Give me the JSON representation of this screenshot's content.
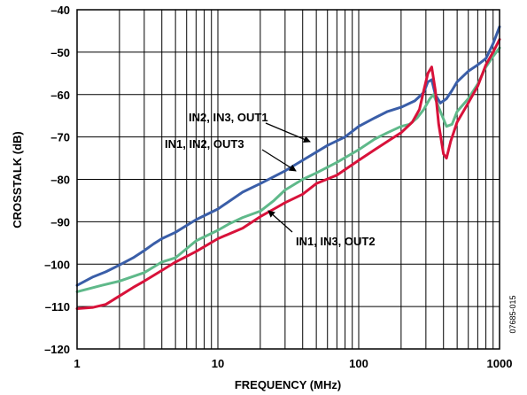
{
  "chart_data": {
    "type": "line",
    "xlabel": "FREQUENCY (MHz)",
    "ylabel": "CROSSTALK (dB)",
    "x_scale": "log",
    "xlim": [
      1,
      1000
    ],
    "ylim": [
      -120,
      -40
    ],
    "grid": true,
    "x_ticks": [
      1,
      10,
      100,
      1000
    ],
    "x_tick_labels": [
      "1",
      "10",
      "100",
      "1000"
    ],
    "y_ticks": [
      -40,
      -50,
      -60,
      -70,
      -80,
      -90,
      -100,
      -110,
      -120
    ],
    "y_tick_labels": [
      "–40",
      "–50",
      "–60",
      "–70",
      "–80",
      "–90",
      "–100",
      "–110",
      "–120"
    ],
    "figure_code": "07685-015",
    "series": [
      {
        "name": "IN2, IN3, OUT1",
        "color": "#3a5ea8",
        "points": [
          [
            1,
            -105
          ],
          [
            1.3,
            -103
          ],
          [
            1.6,
            -101.8
          ],
          [
            2,
            -100.2
          ],
          [
            2.5,
            -98.5
          ],
          [
            3,
            -96.8
          ],
          [
            3.5,
            -95.2
          ],
          [
            4,
            -94
          ],
          [
            5,
            -92.5
          ],
          [
            7,
            -89.5
          ],
          [
            10,
            -87
          ],
          [
            15,
            -83
          ],
          [
            20,
            -81
          ],
          [
            30,
            -78
          ],
          [
            40,
            -75.5
          ],
          [
            60,
            -72
          ],
          [
            80,
            -70
          ],
          [
            100,
            -67.5
          ],
          [
            130,
            -65.5
          ],
          [
            160,
            -64
          ],
          [
            200,
            -63
          ],
          [
            250,
            -61.5
          ],
          [
            290,
            -59.5
          ],
          [
            310,
            -57
          ],
          [
            330,
            -56.5
          ],
          [
            350,
            -60
          ],
          [
            380,
            -62
          ],
          [
            420,
            -61
          ],
          [
            460,
            -59
          ],
          [
            500,
            -57
          ],
          [
            600,
            -54.5
          ],
          [
            700,
            -53
          ],
          [
            800,
            -51.5
          ],
          [
            900,
            -48
          ],
          [
            1000,
            -44
          ]
        ]
      },
      {
        "name": "IN1, IN2, OUT3",
        "color": "#5fb98a",
        "points": [
          [
            1,
            -106.5
          ],
          [
            1.5,
            -105
          ],
          [
            2,
            -104
          ],
          [
            3,
            -102
          ],
          [
            4,
            -99.5
          ],
          [
            5,
            -98.5
          ],
          [
            7,
            -94.5
          ],
          [
            10,
            -92
          ],
          [
            12,
            -90.5
          ],
          [
            15,
            -89
          ],
          [
            20,
            -87.5
          ],
          [
            25,
            -85
          ],
          [
            30,
            -82.5
          ],
          [
            40,
            -80
          ],
          [
            50,
            -78.5
          ],
          [
            70,
            -76
          ],
          [
            100,
            -73
          ],
          [
            130,
            -70.5
          ],
          [
            160,
            -69
          ],
          [
            200,
            -67.5
          ],
          [
            230,
            -67
          ],
          [
            260,
            -65.5
          ],
          [
            290,
            -63.5
          ],
          [
            320,
            -61
          ],
          [
            340,
            -60
          ],
          [
            380,
            -64
          ],
          [
            420,
            -67.5
          ],
          [
            460,
            -67
          ],
          [
            500,
            -64
          ],
          [
            600,
            -61
          ],
          [
            700,
            -57.5
          ],
          [
            800,
            -53.5
          ],
          [
            900,
            -51
          ],
          [
            1000,
            -49
          ]
        ]
      },
      {
        "name": "IN1, IN3, OUT2",
        "color": "#d8123a",
        "points": [
          [
            1,
            -110.5
          ],
          [
            1.3,
            -110.2
          ],
          [
            1.6,
            -109.5
          ],
          [
            2,
            -107.5
          ],
          [
            2.5,
            -105.5
          ],
          [
            3,
            -104
          ],
          [
            4,
            -101.5
          ],
          [
            5,
            -99.5
          ],
          [
            7,
            -97
          ],
          [
            10,
            -94
          ],
          [
            15,
            -91.5
          ],
          [
            20,
            -88.8
          ],
          [
            25,
            -87
          ],
          [
            30,
            -85.5
          ],
          [
            40,
            -83.5
          ],
          [
            50,
            -81
          ],
          [
            70,
            -79
          ],
          [
            100,
            -75.5
          ],
          [
            130,
            -73
          ],
          [
            170,
            -70.5
          ],
          [
            200,
            -69
          ],
          [
            240,
            -66.5
          ],
          [
            270,
            -63.5
          ],
          [
            290,
            -59
          ],
          [
            310,
            -55
          ],
          [
            330,
            -53.5
          ],
          [
            350,
            -59
          ],
          [
            370,
            -67
          ],
          [
            400,
            -74
          ],
          [
            420,
            -75
          ],
          [
            450,
            -71
          ],
          [
            500,
            -66.5
          ],
          [
            600,
            -62
          ],
          [
            700,
            -58
          ],
          [
            800,
            -53
          ],
          [
            900,
            -50
          ],
          [
            1000,
            -47
          ]
        ]
      }
    ]
  },
  "annotations": [
    {
      "text": "IN2, IN3, OUT1",
      "series": 0
    },
    {
      "text": "IN1, IN2, OUT3",
      "series": 1
    },
    {
      "text": "IN1, IN3, OUT2",
      "series": 2
    }
  ]
}
